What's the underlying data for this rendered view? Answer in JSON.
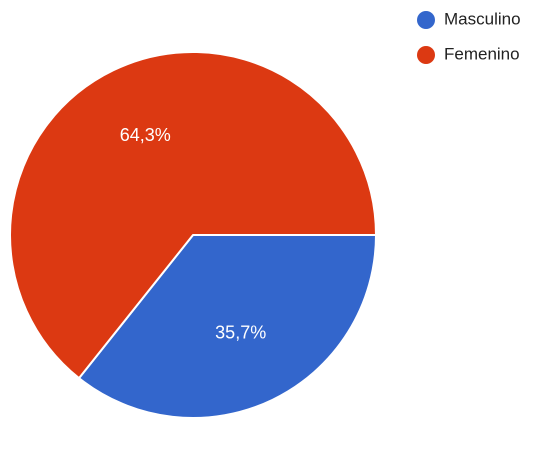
{
  "chart_data": {
    "type": "pie",
    "title": "",
    "slices": [
      {
        "label": "Masculino",
        "value": 35.7,
        "display": "35,7%",
        "color": "#3366cc"
      },
      {
        "label": "Femenino",
        "value": 64.3,
        "display": "64,3%",
        "color": "#dc3912"
      }
    ],
    "start_angle_deg": 0,
    "direction": "clockwise",
    "legend": {
      "position": "top-right",
      "items": [
        "Masculino",
        "Femenino"
      ]
    }
  }
}
